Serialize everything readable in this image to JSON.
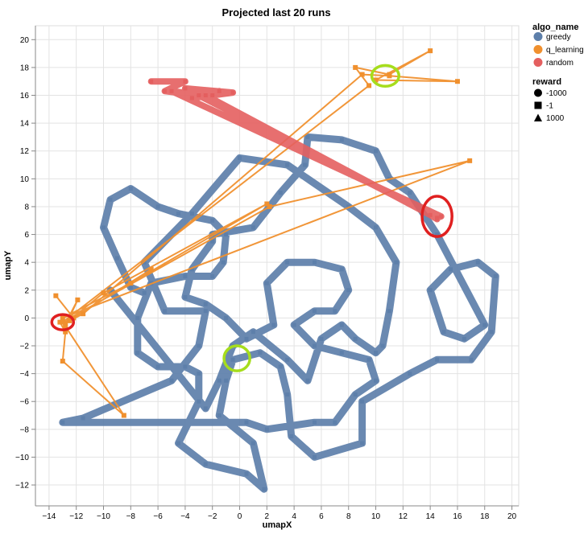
{
  "chart_data": {
    "type": "line",
    "title": "Projected last 20 runs",
    "xlabel": "umapX",
    "ylabel": "umapY",
    "xlim": [
      -15,
      20.5
    ],
    "ylim": [
      -13.5,
      21
    ],
    "xticks": [
      -14,
      -12,
      -10,
      -8,
      -6,
      -4,
      -2,
      0,
      2,
      4,
      6,
      8,
      10,
      12,
      14,
      16,
      18,
      20
    ],
    "yticks": [
      -12,
      -10,
      -8,
      -6,
      -4,
      -2,
      0,
      2,
      4,
      6,
      8,
      10,
      12,
      14,
      16,
      18,
      20
    ],
    "grid": true,
    "legend": {
      "placement": "top-right",
      "color_title": "algo_name",
      "color_entries": [
        {
          "name": "greedy",
          "color": "#5d7faa"
        },
        {
          "name": "q_learning",
          "color": "#f0902e"
        },
        {
          "name": "random",
          "color": "#e45f5f"
        }
      ],
      "shape_title": "reward",
      "shape_entries": [
        {
          "name": "-1000",
          "shape": "circle"
        },
        {
          "name": "-1",
          "shape": "square"
        },
        {
          "name": "1000",
          "shape": "triangle"
        }
      ]
    },
    "series": [
      {
        "name": "greedy",
        "color": "#5d7faa",
        "points": [
          [
            -7,
            1.8
          ],
          [
            -8,
            2.2
          ],
          [
            -9,
            4.3
          ],
          [
            -10,
            6.5
          ],
          [
            -9.5,
            8.5
          ],
          [
            -8,
            9.3
          ],
          [
            -6,
            8.0
          ],
          [
            -4.5,
            7.5
          ],
          [
            -2,
            7.0
          ],
          [
            -1,
            6.0
          ],
          [
            -1.2,
            4.0
          ],
          [
            -2,
            3.0
          ],
          [
            -4,
            3.0
          ],
          [
            -6.5,
            2.5
          ],
          [
            -7.5,
            0
          ],
          [
            -7.5,
            -2.5
          ],
          [
            -6,
            -3.5
          ],
          [
            -4,
            -3.5
          ],
          [
            -3,
            -4.0
          ],
          [
            -3,
            -6.0
          ],
          [
            -4.5,
            -9.0
          ],
          [
            -2.5,
            -10.5
          ],
          [
            0.5,
            -11.2
          ],
          [
            1.8,
            -12.3
          ],
          [
            1.0,
            -9.0
          ],
          [
            -1.5,
            -7.0
          ],
          [
            -1.0,
            -4.5
          ],
          [
            -0.5,
            -3.0
          ],
          [
            1.5,
            -2.5
          ],
          [
            3.0,
            -3.5
          ],
          [
            3.5,
            -5.5
          ],
          [
            3.8,
            -8.5
          ],
          [
            5.5,
            -10.0
          ],
          [
            9.0,
            -9.0
          ],
          [
            9.0,
            -6.0
          ],
          [
            12.5,
            -4.0
          ],
          [
            14.5,
            -3.0
          ],
          [
            17.0,
            -3.0
          ],
          [
            18.5,
            -1.0
          ],
          [
            18.8,
            3.0
          ],
          [
            17.5,
            4.0
          ],
          [
            15.5,
            3.5
          ],
          [
            14.0,
            2.0
          ],
          [
            15.0,
            -1.0
          ],
          [
            16.5,
            -1.5
          ],
          [
            18.0,
            -0.5
          ],
          [
            14.5,
            6.0
          ],
          [
            12.5,
            9.0
          ],
          [
            11.0,
            10.0
          ],
          [
            10.0,
            12.0
          ],
          [
            7.5,
            12.8
          ],
          [
            5.0,
            13.0
          ],
          [
            4.8,
            11.0
          ],
          [
            3.0,
            9.0
          ],
          [
            1.0,
            6.5
          ],
          [
            -2.0,
            6.0
          ],
          [
            -2.0,
            5.5
          ],
          [
            -3.5,
            3.5
          ],
          [
            -4.0,
            1.5
          ],
          [
            -2.5,
            1.0
          ],
          [
            -1.0,
            0.0
          ],
          [
            0.5,
            -1.5
          ],
          [
            2.5,
            -0.5
          ],
          [
            2.0,
            2.5
          ],
          [
            3.5,
            4.0
          ],
          [
            5.5,
            4.0
          ],
          [
            7.5,
            3.5
          ],
          [
            8.0,
            2.0
          ],
          [
            7.0,
            0.5
          ],
          [
            5.5,
            0.5
          ],
          [
            4.0,
            -0.5
          ],
          [
            5.5,
            -2.0
          ],
          [
            7.5,
            -2.5
          ],
          [
            9.5,
            -3.0
          ],
          [
            10.0,
            -4.5
          ],
          [
            8.5,
            -5.5
          ],
          [
            7.0,
            -7.5
          ],
          [
            5.5,
            -7.5
          ],
          [
            2.0,
            -8.0
          ],
          [
            0.5,
            -7.5
          ],
          [
            -13.0,
            -7.5
          ],
          [
            -11.5,
            -7.2
          ],
          [
            -5.0,
            -4.5
          ],
          [
            -3.0,
            -2.0
          ],
          [
            -2.5,
            0.5
          ],
          [
            -5.5,
            0.5
          ],
          [
            -7.0,
            4.0
          ],
          [
            -3.5,
            7.5
          ],
          [
            0.0,
            11.5
          ],
          [
            3.5,
            11.0
          ],
          [
            8.0,
            8.0
          ],
          [
            10.0,
            6.5
          ],
          [
            11.5,
            4.0
          ],
          [
            11.0,
            0.5
          ],
          [
            10.5,
            -2.0
          ],
          [
            10.0,
            -2.5
          ],
          [
            8.5,
            -1.5
          ],
          [
            7.5,
            -0.5
          ],
          [
            6.0,
            -1.5
          ],
          [
            5.0,
            -4.5
          ],
          [
            3.5,
            -3.0
          ],
          [
            1.0,
            -1.0
          ],
          [
            -0.5,
            -2.0
          ],
          [
            -1.5,
            -4.5
          ],
          [
            -2.5,
            -6.5
          ],
          [
            -9.5,
            2.0
          ]
        ]
      },
      {
        "name": "q_learning",
        "color": "#f0902e",
        "points": [
          [
            -13.5,
            1.6
          ],
          [
            -12.2,
            0.0
          ],
          [
            -13.2,
            -0.3
          ],
          [
            -12.8,
            -1.0
          ],
          [
            -13.0,
            -3.1
          ],
          [
            -8.5,
            -7.0
          ],
          [
            -12.8,
            -0.6
          ],
          [
            -11.9,
            1.3
          ],
          [
            -12.8,
            -0.4
          ],
          [
            -10.0,
            1.8
          ],
          [
            2.0,
            8.2
          ],
          [
            -8.0,
            2.5
          ],
          [
            -13.0,
            0.0
          ],
          [
            16.9,
            11.3
          ],
          [
            2.2,
            8.0
          ],
          [
            -13.0,
            -0.3
          ],
          [
            9.5,
            16.7
          ],
          [
            8.5,
            18.0
          ],
          [
            11.0,
            17.5
          ],
          [
            14.0,
            19.2
          ],
          [
            10.0,
            17.1
          ],
          [
            16.0,
            17.0
          ],
          [
            11.0,
            17.4
          ],
          [
            9.0,
            17.5
          ],
          [
            -11.5,
            0.3
          ],
          [
            -12.5,
            -0.2
          ],
          [
            -6.5,
            3.5
          ]
        ]
      },
      {
        "name": "random",
        "color": "#e45f5f",
        "points": [
          [
            -6.5,
            17.0
          ],
          [
            -4.0,
            17.0
          ],
          [
            -5.5,
            16.3
          ],
          [
            -3.0,
            16.0
          ],
          [
            -1.5,
            16.3
          ],
          [
            -3.5,
            15.8
          ],
          [
            -2.0,
            16.0
          ],
          [
            -0.5,
            16.2
          ],
          [
            -4.0,
            16.5
          ],
          [
            14.5,
            7.2
          ],
          [
            14.8,
            7.3
          ],
          [
            -5.0,
            16.3
          ],
          [
            -2.5,
            16.0
          ],
          [
            14.0,
            7.4
          ],
          [
            14.5,
            7.1
          ]
        ]
      }
    ],
    "annotations": [
      {
        "type": "ellipse",
        "color": "#e02020",
        "cx": -13.0,
        "cy": -0.3,
        "rx": 0.8,
        "ry": 0.55
      },
      {
        "type": "ellipse",
        "color": "#a6dd1c",
        "cx": 10.7,
        "cy": 17.4,
        "rx": 1.0,
        "ry": 0.75
      },
      {
        "type": "ellipse",
        "color": "#e02020",
        "cx": 14.5,
        "cy": 7.3,
        "rx": 1.1,
        "ry": 1.45
      },
      {
        "type": "ellipse",
        "color": "#a6dd1c",
        "cx": -0.2,
        "cy": -2.9,
        "rx": 0.95,
        "ry": 0.9
      }
    ]
  }
}
